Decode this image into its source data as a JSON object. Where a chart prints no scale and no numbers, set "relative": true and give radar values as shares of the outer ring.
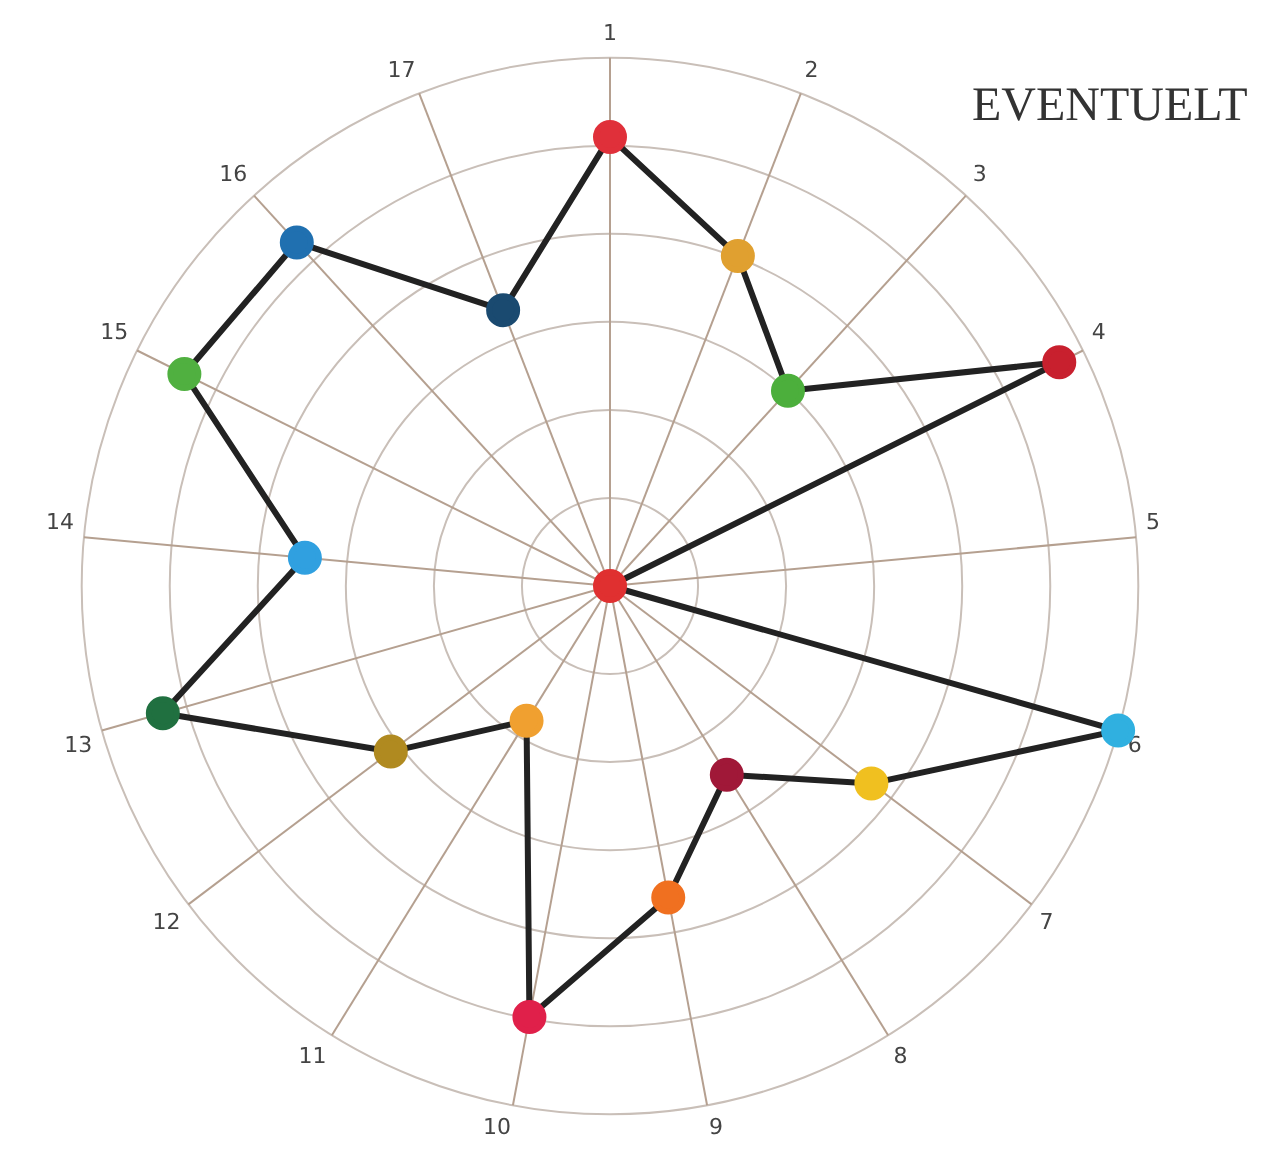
{
  "chart_data": {
    "type": "radar",
    "relative": true,
    "grid": true,
    "legend": false,
    "marker": "circle",
    "categories": [
      "1",
      "2",
      "3",
      "4",
      "5",
      "6",
      "7",
      "8",
      "9",
      "10",
      "11",
      "12",
      "13",
      "14",
      "15",
      "16",
      "17"
    ],
    "series": [
      {
        "color": "#222222",
        "values": [
          0.85,
          0.67,
          0.5,
          0.95,
          0,
          1,
          0.62,
          0.42,
          0.6,
          0.83,
          0.3,
          0.52,
          0.88,
          0.58,
          0.9,
          0.88,
          0.56
        ],
        "colors": [
          "#e0303a",
          "#e0a030",
          "#4caf3c",
          "#c8202e",
          "#e03030",
          "#30b0e0",
          "#f0c020",
          "#a01838",
          "#f07020",
          "#e0204a",
          "#f0a030",
          "#b08a20",
          "#207040",
          "#30a0e0",
          "#50b040",
          "#2070b0",
          "#1a4a70"
        ]
      }
    ],
    "annotations": [
      "EVENTUELT"
    ]
  }
}
